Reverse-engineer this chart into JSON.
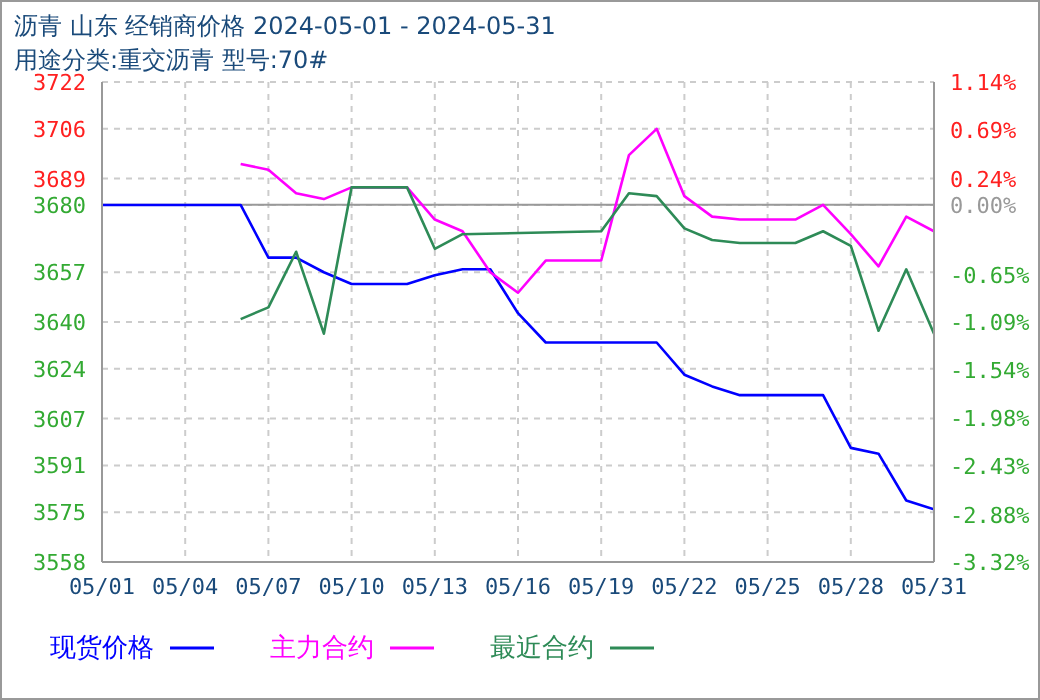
{
  "chart_data": {
    "type": "line",
    "title": "沥青  山东  经销商价格  2024-05-01 - 2024-05-31",
    "subtitle": "用途分类:重交沥青  型号:70#",
    "xlim": [
      "--05-01",
      "--05-31"
    ],
    "xticks": [
      {
        "value": "--05-01",
        "label": "05/01"
      },
      {
        "value": "--05-04",
        "label": "05/04"
      },
      {
        "value": "--05-07",
        "label": "05/07"
      },
      {
        "value": "--05-10",
        "label": "05/10"
      },
      {
        "value": "--05-13",
        "label": "05/13"
      },
      {
        "value": "--05-16",
        "label": "05/16"
      },
      {
        "value": "--05-19",
        "label": "05/19"
      },
      {
        "value": "--05-22",
        "label": "05/22"
      },
      {
        "value": "--05-25",
        "label": "05/25"
      },
      {
        "value": "--05-28",
        "label": "05/28"
      },
      {
        "value": "--05-31",
        "label": "05/31"
      }
    ],
    "ylim": [
      3558,
      3722
    ],
    "yticks": [
      3558,
      3575,
      3591,
      3607,
      3624,
      3640,
      3657,
      3680,
      3689,
      3706,
      3722
    ],
    "y2lim": [
      -3.32,
      1.14
    ],
    "y2ticks": [
      {
        "value": -3.32,
        "label": "-3.32%"
      },
      {
        "value": -2.88,
        "label": "-2.88%"
      },
      {
        "value": -2.43,
        "label": "-2.43%"
      },
      {
        "value": -1.98,
        "label": "-1.98%"
      },
      {
        "value": -1.54,
        "label": "-1.54%"
      },
      {
        "value": -1.09,
        "label": "-1.09%"
      },
      {
        "value": -0.65,
        "label": "-0.65%"
      },
      {
        "value": 0,
        "label": "0.00%"
      },
      {
        "value": 0.24,
        "label": "0.24%"
      },
      {
        "value": 0.69,
        "label": "0.69%"
      },
      {
        "value": 1.14,
        "label": "1.14%"
      }
    ],
    "ref_lines": [
      {
        "axis": "y2",
        "value": 0,
        "color": "#999999"
      }
    ],
    "grid": true,
    "legend": "bottom",
    "line_style": "solid",
    "marker": "none",
    "series": [
      {
        "name": "现货价格",
        "color": "#0000ff",
        "x": [
          "--05-01",
          "--05-06",
          "--05-07",
          "--05-08",
          "--05-09",
          "--05-10",
          "--05-12",
          "--05-13",
          "--05-14",
          "--05-15",
          "--05-16",
          "--05-17",
          "--05-21",
          "--05-22",
          "--05-23",
          "--05-24",
          "--05-27",
          "--05-28",
          "--05-29",
          "--05-30",
          "--05-31"
        ],
        "values": [
          3680,
          3680,
          3662,
          3662,
          3657,
          3653,
          3653,
          3656,
          3658,
          3658,
          3643,
          3633,
          3633,
          3622,
          3618,
          3615,
          3615,
          3597,
          3595,
          3579,
          3576
        ]
      },
      {
        "name": "主力合约",
        "color": "#ff00ff",
        "x": [
          "--05-06",
          "--05-07",
          "--05-08",
          "--05-09",
          "--05-10",
          "--05-12",
          "--05-13",
          "--05-14",
          "--05-15",
          "--05-16",
          "--05-17",
          "--05-19",
          "--05-20",
          "--05-21",
          "--05-22",
          "--05-23",
          "--05-24",
          "--05-26",
          "--05-27",
          "--05-28",
          "--05-29",
          "--05-30",
          "--05-31"
        ],
        "values": [
          3694,
          3692,
          3684,
          3682,
          3686,
          3686,
          3675,
          3671,
          3657,
          3650,
          3661,
          3661,
          3697,
          3706,
          3683,
          3676,
          3675,
          3675,
          3680,
          3670,
          3659,
          3676,
          3671
        ]
      },
      {
        "name": "最近合约",
        "color": "#2e8b57",
        "x": [
          "--05-06",
          "--05-07",
          "--05-08",
          "--05-09",
          "--05-10",
          "--05-12",
          "--05-13",
          "--05-14",
          "--05-19",
          "--05-20",
          "--05-21",
          "--05-22",
          "--05-23",
          "--05-24",
          "--05-26",
          "--05-27",
          "--05-28",
          "--05-29",
          "--05-30",
          "--05-31"
        ],
        "values": [
          3641,
          3645,
          3664,
          3636,
          3686,
          3686,
          3665,
          3670,
          3671,
          3684,
          3683,
          3672,
          3668,
          3667,
          3667,
          3671,
          3666,
          3637,
          3658,
          3636
        ]
      }
    ]
  }
}
